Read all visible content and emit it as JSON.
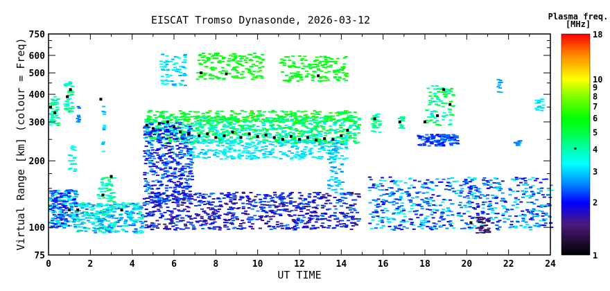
{
  "chart_data": {
    "type": "scatter",
    "title": "EISCAT Tromso Dynasonde, 2026-03-12",
    "xlabel": "UT TIME",
    "ylabel": "Virtual Range [km] (colour = Freq)",
    "xlim": [
      0,
      24
    ],
    "ylim": [
      75,
      750
    ],
    "yscale": "log",
    "xticks": [
      "0",
      "2",
      "4",
      "6",
      "8",
      "10",
      "12",
      "14",
      "16",
      "18",
      "20",
      "22",
      "24"
    ],
    "yticks": [
      "75",
      "100",
      "200",
      "300",
      "400",
      "500",
      "600",
      "750"
    ],
    "colorbar": {
      "title": "Plasma freq.",
      "unit": "[MHz]",
      "range": [
        1,
        18
      ],
      "scale": "log",
      "ticks": [
        "1",
        "2",
        "3",
        "4",
        "5",
        "6",
        "7",
        "8",
        "9",
        "10",
        "18"
      ]
    },
    "colormap": [
      [
        1,
        "#000000"
      ],
      [
        1.5,
        "#4b1a7a"
      ],
      [
        2,
        "#0000ff"
      ],
      [
        2.5,
        "#0080ff"
      ],
      [
        3.3,
        "#00ffff"
      ],
      [
        4,
        "#00ffb0"
      ],
      [
        5,
        "#00ff40"
      ],
      [
        6,
        "#00ff00"
      ],
      [
        8,
        "#80ff00"
      ],
      [
        10,
        "#ffff00"
      ],
      [
        14,
        "#ff8000"
      ],
      [
        18,
        "#ff0000"
      ]
    ],
    "echo_regions_note": "[t_start_h, t_end_h, range_min_km, range_max_km, freq_min_MHz, freq_max_MHz, count]",
    "echo_regions": [
      [
        0,
        1.3,
        100,
        150,
        1.8,
        3.6,
        260
      ],
      [
        1.3,
        4.5,
        95,
        130,
        2.3,
        4.2,
        320
      ],
      [
        2.3,
        3.1,
        115,
        170,
        3,
        5.2,
        70
      ],
      [
        0,
        0.4,
        290,
        400,
        3,
        5,
        50
      ],
      [
        0.7,
        1.1,
        330,
        460,
        3,
        5,
        50
      ],
      [
        0.9,
        1.2,
        180,
        240,
        3,
        4,
        20
      ],
      [
        4.5,
        14.8,
        240,
        320,
        3,
        6,
        900
      ],
      [
        4.6,
        14.6,
        300,
        340,
        4.5,
        7,
        250
      ],
      [
        4.5,
        6.8,
        130,
        300,
        1.7,
        2.8,
        450
      ],
      [
        5.3,
        6.5,
        440,
        620,
        2.6,
        3.6,
        70
      ],
      [
        7,
        10.2,
        470,
        620,
        5,
        6.5,
        160
      ],
      [
        11,
        14.2,
        460,
        600,
        5,
        6.5,
        160
      ],
      [
        4.5,
        14.8,
        98,
        145,
        1.4,
        2.6,
        800
      ],
      [
        6.5,
        14.2,
        205,
        250,
        2.8,
        3.6,
        300
      ],
      [
        13.3,
        14,
        140,
        250,
        2.5,
        3.2,
        60
      ],
      [
        15.2,
        24,
        98,
        170,
        1.8,
        3.5,
        650
      ],
      [
        15.4,
        15.8,
        270,
        330,
        3.5,
        5,
        30
      ],
      [
        16.7,
        16.9,
        280,
        320,
        3.5,
        5,
        15
      ],
      [
        17.6,
        19.5,
        235,
        265,
        1.9,
        2.6,
        120
      ],
      [
        18,
        19.3,
        290,
        440,
        3,
        6,
        90
      ],
      [
        20.4,
        21,
        95,
        112,
        1.2,
        1.7,
        40
      ],
      [
        22.2,
        22.5,
        235,
        250,
        2.3,
        2.8,
        12
      ],
      [
        23.2,
        23.6,
        340,
        390,
        2.8,
        3.4,
        20
      ],
      [
        21.4,
        21.6,
        410,
        470,
        2.6,
        3,
        10
      ],
      [
        1.3,
        1.4,
        300,
        360,
        2.4,
        2.8,
        10
      ],
      [
        2.5,
        2.6,
        220,
        380,
        2.7,
        3.3,
        12
      ]
    ],
    "max_freq_points_note": "[t_h, range_km] black markers",
    "max_freq_points": [
      [
        0.1,
        350
      ],
      [
        0.3,
        330
      ],
      [
        0.9,
        390
      ],
      [
        1.05,
        420
      ],
      [
        1.0,
        120
      ],
      [
        2.5,
        380
      ],
      [
        2.6,
        140
      ],
      [
        3,
        170
      ],
      [
        4.7,
        290
      ],
      [
        5,
        280
      ],
      [
        5.3,
        295
      ],
      [
        5.7,
        300
      ],
      [
        6,
        285
      ],
      [
        6.3,
        270
      ],
      [
        6.7,
        265
      ],
      [
        7.2,
        260
      ],
      [
        7.6,
        265
      ],
      [
        8,
        255
      ],
      [
        8.4,
        260
      ],
      [
        8.8,
        270
      ],
      [
        9.2,
        255
      ],
      [
        9.6,
        265
      ],
      [
        10,
        258
      ],
      [
        10.4,
        262
      ],
      [
        10.8,
        255
      ],
      [
        11.2,
        250
      ],
      [
        11.6,
        258
      ],
      [
        12,
        250
      ],
      [
        12.4,
        255
      ],
      [
        12.8,
        248
      ],
      [
        13.2,
        252
      ],
      [
        13.6,
        250
      ],
      [
        14,
        260
      ],
      [
        14.3,
        275
      ],
      [
        7.3,
        500
      ],
      [
        8.5,
        495
      ],
      [
        12.9,
        485
      ],
      [
        15.6,
        310
      ],
      [
        16.8,
        300
      ],
      [
        18,
        300
      ],
      [
        18.6,
        320
      ],
      [
        18.9,
        420
      ],
      [
        19.2,
        360
      ],
      [
        20.2,
        105
      ],
      [
        1.4,
        120
      ],
      [
        3.5,
        120
      ]
    ],
    "colorbar_marker": 4
  }
}
